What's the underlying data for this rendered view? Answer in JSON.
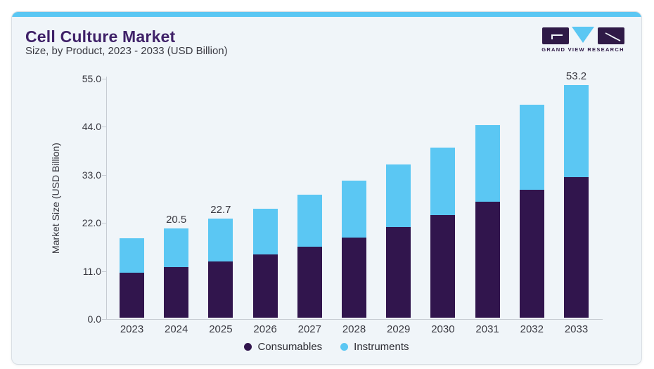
{
  "header": {
    "title": "Cell Culture Market",
    "subtitle": "Size, by Product, 2023 - 2033 (USD Billion)"
  },
  "logo": {
    "text": "GRAND VIEW RESEARCH",
    "mark_colors": {
      "squares": "#2f1a47",
      "triangle": "#5bc7f3"
    }
  },
  "chart_data": {
    "type": "bar",
    "stacked": true,
    "title": "Cell Culture Market Size, by Product, 2023 - 2033 (USD Billion)",
    "categories": [
      "2023",
      "2024",
      "2025",
      "2026",
      "2027",
      "2028",
      "2029",
      "2030",
      "2031",
      "2032",
      "2033"
    ],
    "series": [
      {
        "name": "Consumables",
        "color": "#31154d",
        "values": [
          10.3,
          11.5,
          12.9,
          14.5,
          16.2,
          18.4,
          20.7,
          23.5,
          26.5,
          29.2,
          32.1
        ]
      },
      {
        "name": "Instruments",
        "color": "#5bc7f3",
        "values": [
          7.9,
          9.0,
          9.8,
          10.5,
          11.9,
          12.9,
          14.3,
          15.5,
          17.5,
          19.5,
          21.1
        ]
      }
    ],
    "totals": [
      18.2,
      20.5,
      22.7,
      25.0,
      28.1,
      31.3,
      35.0,
      39.0,
      44.0,
      48.7,
      53.2
    ],
    "total_labels": {
      "2024": "20.5",
      "2025": "22.7",
      "2033": "53.2"
    },
    "ylabel": "Market Size (USD Billion)",
    "ylim": [
      0,
      55
    ],
    "yticks": [
      {
        "value": 0,
        "label": "0.0"
      },
      {
        "value": 11,
        "label": "11.0"
      },
      {
        "value": 22,
        "label": "22.0"
      },
      {
        "value": 33,
        "label": "33.0"
      },
      {
        "value": 44,
        "label": "44.0"
      },
      {
        "value": 55,
        "label": "55.0"
      }
    ],
    "grid": false,
    "legend_position": "bottom"
  },
  "colors": {
    "accent_bar": "#5bc7f3",
    "card_background": "#f0f5f9",
    "card_border": "#d9dee4",
    "title_text": "#3f2168",
    "body_text": "#3a3a42",
    "axis_line": "#c7ccd3"
  }
}
